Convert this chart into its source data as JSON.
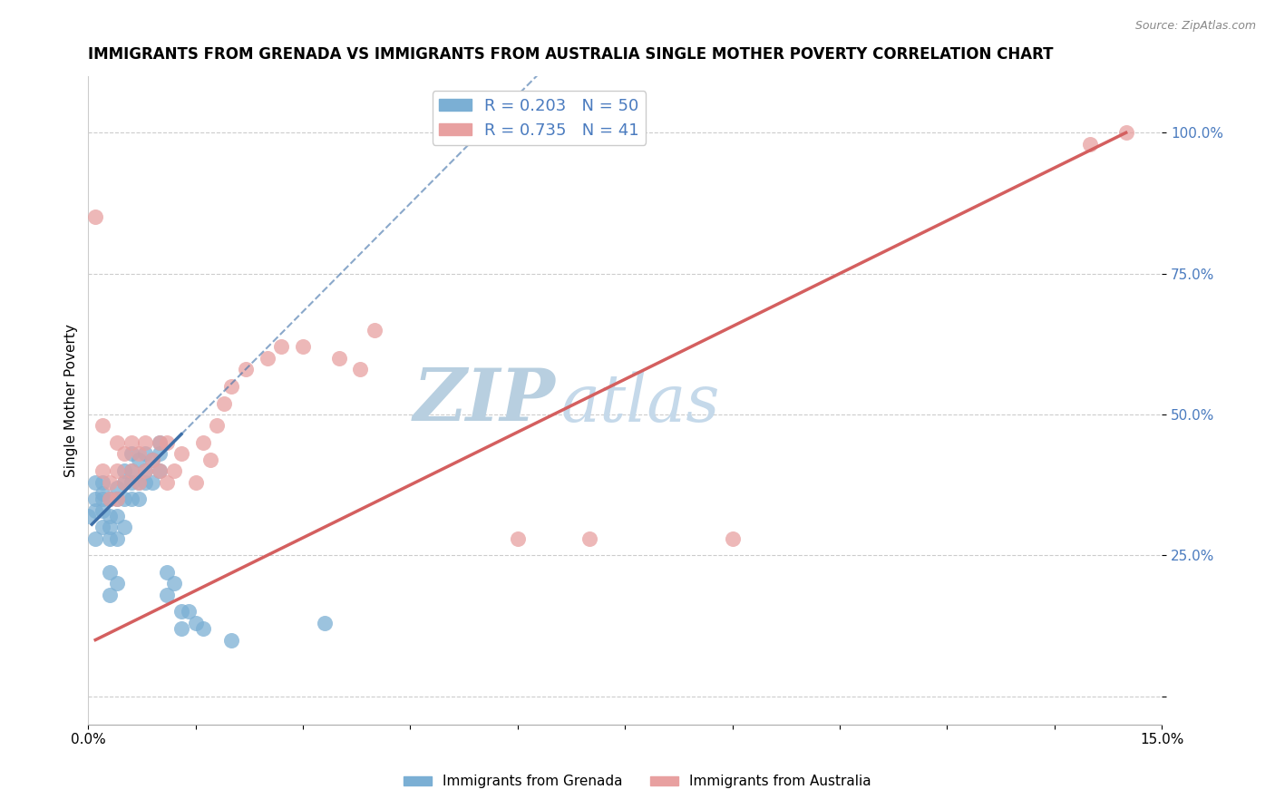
{
  "title": "IMMIGRANTS FROM GRENADA VS IMMIGRANTS FROM AUSTRALIA SINGLE MOTHER POVERTY CORRELATION CHART",
  "source_text": "Source: ZipAtlas.com",
  "ylabel": "Single Mother Poverty",
  "xlim": [
    0.0,
    0.15
  ],
  "ylim": [
    -0.05,
    1.1
  ],
  "ytick_vals": [
    0.0,
    0.25,
    0.5,
    0.75,
    1.0
  ],
  "ytick_labels": [
    "",
    "25.0%",
    "50.0%",
    "75.0%",
    "100.0%"
  ],
  "xtick_vals": [
    0.0,
    0.015,
    0.03,
    0.045,
    0.06,
    0.075,
    0.09,
    0.105,
    0.12,
    0.135,
    0.15
  ],
  "xtick_labels": [
    "0.0%",
    "",
    "",
    "",
    "",
    "",
    "",
    "",
    "",
    "",
    "15.0%"
  ],
  "legend_blue_r": "R = 0.203",
  "legend_blue_n": "N = 50",
  "legend_pink_r": "R = 0.735",
  "legend_pink_n": "N = 41",
  "blue_color": "#7bafd4",
  "pink_color": "#e8a0a0",
  "blue_line_color": "#3d6fa8",
  "pink_line_color": "#d45f5f",
  "watermark_zip_color": "#c5d8ea",
  "watermark_atlas_color": "#b8cfe0",
  "title_fontsize": 12,
  "axis_label_fontsize": 11,
  "tick_fontsize": 11,
  "background_color": "#ffffff",
  "grenada_x": [
    0.0,
    0.001,
    0.001,
    0.001,
    0.001,
    0.002,
    0.002,
    0.002,
    0.002,
    0.002,
    0.003,
    0.003,
    0.003,
    0.003,
    0.003,
    0.003,
    0.004,
    0.004,
    0.004,
    0.004,
    0.004,
    0.005,
    0.005,
    0.005,
    0.005,
    0.006,
    0.006,
    0.006,
    0.006,
    0.007,
    0.007,
    0.007,
    0.008,
    0.008,
    0.008,
    0.009,
    0.009,
    0.01,
    0.01,
    0.01,
    0.011,
    0.011,
    0.012,
    0.013,
    0.013,
    0.014,
    0.015,
    0.016,
    0.02,
    0.033
  ],
  "grenada_y": [
    0.32,
    0.38,
    0.35,
    0.33,
    0.28,
    0.35,
    0.33,
    0.3,
    0.38,
    0.36,
    0.35,
    0.32,
    0.3,
    0.28,
    0.22,
    0.18,
    0.37,
    0.35,
    0.32,
    0.28,
    0.2,
    0.4,
    0.38,
    0.35,
    0.3,
    0.43,
    0.4,
    0.38,
    0.35,
    0.42,
    0.38,
    0.35,
    0.43,
    0.4,
    0.38,
    0.42,
    0.38,
    0.45,
    0.43,
    0.4,
    0.22,
    0.18,
    0.2,
    0.15,
    0.12,
    0.15,
    0.13,
    0.12,
    0.1,
    0.13
  ],
  "australia_x": [
    0.001,
    0.002,
    0.002,
    0.003,
    0.003,
    0.004,
    0.004,
    0.004,
    0.005,
    0.005,
    0.006,
    0.006,
    0.007,
    0.007,
    0.008,
    0.008,
    0.009,
    0.01,
    0.01,
    0.011,
    0.011,
    0.012,
    0.013,
    0.015,
    0.016,
    0.017,
    0.018,
    0.019,
    0.02,
    0.022,
    0.025,
    0.027,
    0.03,
    0.035,
    0.038,
    0.04,
    0.06,
    0.07,
    0.09,
    0.14,
    0.145
  ],
  "australia_y": [
    0.85,
    0.4,
    0.48,
    0.38,
    0.35,
    0.4,
    0.45,
    0.35,
    0.43,
    0.38,
    0.45,
    0.4,
    0.43,
    0.38,
    0.4,
    0.45,
    0.42,
    0.45,
    0.4,
    0.45,
    0.38,
    0.4,
    0.43,
    0.38,
    0.45,
    0.42,
    0.48,
    0.52,
    0.55,
    0.58,
    0.6,
    0.62,
    0.62,
    0.6,
    0.58,
    0.65,
    0.28,
    0.28,
    0.28,
    0.98,
    1.0
  ]
}
